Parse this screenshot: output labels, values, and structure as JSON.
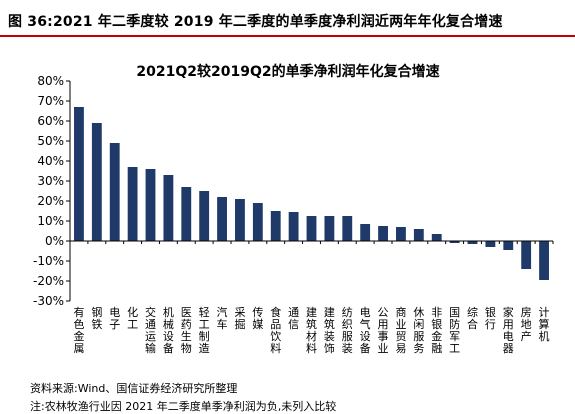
{
  "figure": {
    "title": "图 36:2021 年二季度较 2019 年二季度的单季度净利润近两年年化复合增速",
    "source": "资料来源:Wind、国信证券经济研究所整理",
    "note": "注:农林牧渔行业因 2021 年二季度单季净利润为负,未列入比较"
  },
  "chart_data": {
    "type": "bar",
    "title": "2021Q2较2019Q2的单季净利润年化复合增速",
    "xlabel": "",
    "ylabel": "",
    "ylim": [
      -30,
      80
    ],
    "ytick_step": 10,
    "yticks": [
      "80%",
      "70%",
      "60%",
      "50%",
      "40%",
      "30%",
      "20%",
      "10%",
      "0%",
      "-10%",
      "-20%",
      "-30%"
    ],
    "grid": false,
    "legend": "none",
    "bar_color": "#1f3a68",
    "categories": [
      "有色金属",
      "钢铁",
      "电子",
      "化工",
      "交通运输",
      "机械设备",
      "医药生物",
      "轻工制造",
      "汽车",
      "采掘",
      "传媒",
      "食品饮料",
      "通信",
      "建筑材料",
      "建筑装饰",
      "纺织服装",
      "电气设备",
      "公用事业",
      "商业贸易",
      "休闲服务",
      "非银金融",
      "国防军工",
      "综合",
      "银行",
      "家用电器",
      "房地产",
      "计算机"
    ],
    "values": [
      67,
      59,
      49,
      37,
      36,
      33,
      27,
      25,
      22,
      21,
      19,
      15,
      14.5,
      12.5,
      12.5,
      12.5,
      8.5,
      7.5,
      7,
      6,
      3.5,
      -1,
      -1.5,
      -3,
      -4.5,
      -14,
      -19.5
    ]
  }
}
